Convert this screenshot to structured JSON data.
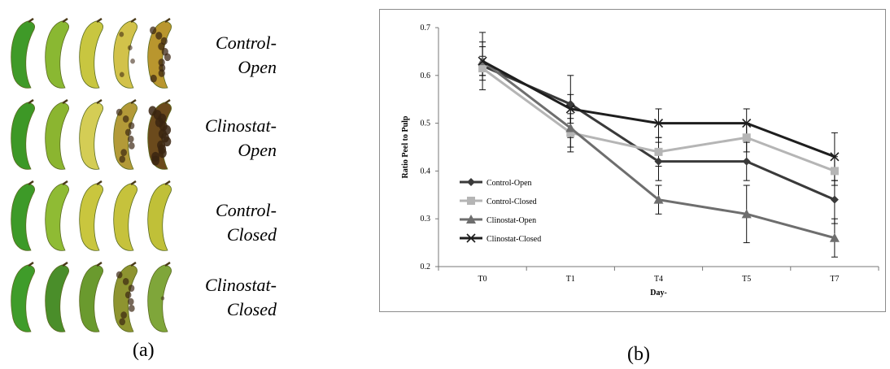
{
  "panel_a": {
    "caption": "(a)",
    "rows": [
      {
        "label_line1": "Control-",
        "label_line2": "Open",
        "banana_colors": [
          "#3f9a28",
          "#8ab832",
          "#c8c640",
          "#d2c24a",
          "#b9962e"
        ],
        "spot_levels": [
          0,
          0,
          0,
          0.3,
          0.7
        ]
      },
      {
        "label_line1": "Clinostat-",
        "label_line2": "Open",
        "banana_colors": [
          "#3d9826",
          "#8bb530",
          "#d4cd55",
          "#b39a38",
          "#6b4a1c"
        ],
        "spot_levels": [
          0,
          0,
          0,
          0.6,
          1.0
        ]
      },
      {
        "label_line1": "Control-",
        "label_line2": "Closed",
        "banana_colors": [
          "#3d9a28",
          "#8fbb34",
          "#c9c63e",
          "#c6c23c",
          "#c0c038"
        ],
        "spot_levels": [
          0,
          0,
          0,
          0,
          0
        ]
      },
      {
        "label_line1": "Clinostat-",
        "label_line2": "Closed",
        "banana_colors": [
          "#3f9c2a",
          "#4a8e2a",
          "#6a9a2e",
          "#8e9430",
          "#7fa63a"
        ],
        "spot_levels": [
          0,
          0,
          0,
          0.6,
          0.1
        ]
      }
    ]
  },
  "panel_b": {
    "caption": "(b)"
  },
  "chart_data": {
    "type": "line",
    "title": "",
    "xlabel": "Day-",
    "ylabel": "Ratio Peel to Pulp",
    "categories": [
      "T0",
      "T1",
      "T4",
      "T5",
      "T7"
    ],
    "ylim": [
      0.2,
      0.7
    ],
    "yticks": [
      "0.2",
      "0.3",
      "0.4",
      "0.5",
      "0.6",
      "0.7"
    ],
    "grid": false,
    "legend_position": "left",
    "series": [
      {
        "name": "Control-Open",
        "values": [
          0.62,
          0.54,
          0.42,
          0.42,
          0.34
        ],
        "color": "#3a3a3a",
        "marker": "diamond",
        "err_low": [
          0.57,
          0.47,
          0.38,
          0.38,
          0.29
        ],
        "err_high": [
          0.67,
          0.6,
          0.46,
          0.46,
          0.38
        ]
      },
      {
        "name": "Control-Closed",
        "values": [
          0.615,
          0.48,
          0.44,
          0.47,
          0.4
        ],
        "color": "#b5b5b5",
        "marker": "square",
        "err_low": [
          0.59,
          0.45,
          0.41,
          0.44,
          0.37
        ],
        "err_high": [
          0.64,
          0.51,
          0.47,
          0.5,
          0.43
        ]
      },
      {
        "name": "Clinostat-Open",
        "values": [
          0.63,
          0.49,
          0.34,
          0.31,
          0.26
        ],
        "color": "#6e6e6e",
        "marker": "triangle",
        "err_low": [
          0.6,
          0.44,
          0.31,
          0.25,
          0.22
        ],
        "err_high": [
          0.66,
          0.52,
          0.37,
          0.37,
          0.3
        ]
      },
      {
        "name": "Clinostat-Closed",
        "values": [
          0.63,
          0.53,
          0.5,
          0.5,
          0.43
        ],
        "color": "#1e1e1e",
        "marker": "x",
        "err_low": [
          0.6,
          0.5,
          0.47,
          0.47,
          0.38
        ],
        "err_high": [
          0.69,
          0.56,
          0.53,
          0.53,
          0.48
        ]
      }
    ]
  }
}
